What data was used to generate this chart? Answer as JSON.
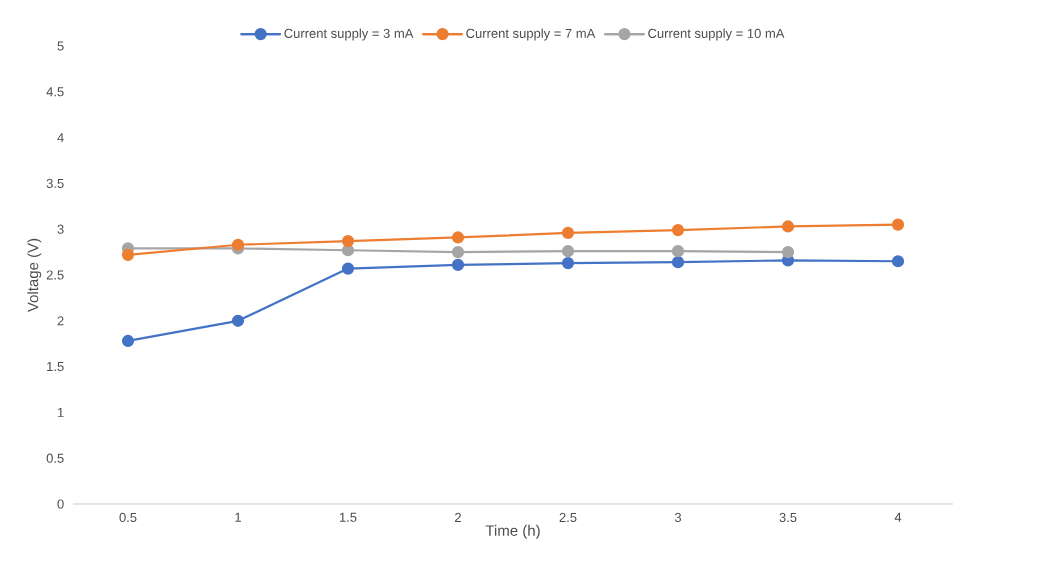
{
  "chart_data": {
    "type": "line",
    "xlabel": "Time (h)",
    "ylabel": "Voltage (V)",
    "categories": [
      "0.5",
      "1",
      "1.5",
      "2",
      "2.5",
      "3",
      "3.5",
      "4"
    ],
    "ylim": [
      0,
      5
    ],
    "yticks": [
      0,
      0.5,
      1,
      1.5,
      2,
      2.5,
      3,
      3.5,
      4,
      4.5,
      5
    ],
    "series": [
      {
        "name": "Current supply = 3 mA",
        "color": "#4472c4",
        "values": [
          1.78,
          2.0,
          2.57,
          2.61,
          2.63,
          2.64,
          2.66,
          2.65
        ]
      },
      {
        "name": "Current supply = 7 mA",
        "color": "#ed7d31",
        "values": [
          2.72,
          2.83,
          2.87,
          2.91,
          2.96,
          2.99,
          3.03,
          3.05
        ]
      },
      {
        "name": "Current supply = 10 mA",
        "color": "#a5a5a5",
        "values": [
          2.79,
          2.79,
          2.77,
          2.75,
          2.76,
          2.76,
          2.75,
          null
        ]
      }
    ],
    "marker": "circle",
    "line_style": "solid",
    "legend": "top",
    "grid": false
  }
}
